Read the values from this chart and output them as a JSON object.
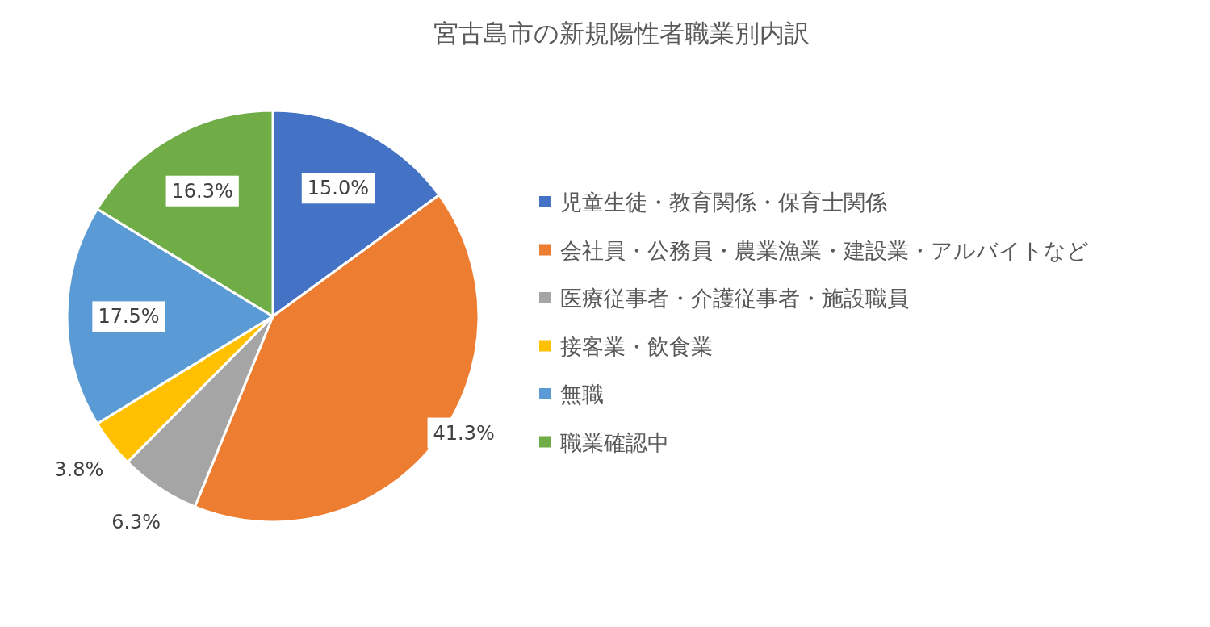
{
  "chart_data": {
    "type": "pie",
    "title": "宮古島市の新規陽性者職業別内訳",
    "categories": [
      "児童生徒・教育関係・保育士関係",
      "会社員・公務員・農業漁業・建設業・アルバイトなど",
      "医療従事者・介護従事者・施設職員",
      "接客業・飲食業",
      "無職",
      "職業確認中"
    ],
    "values": [
      15.0,
      41.3,
      6.3,
      3.8,
      17.5,
      16.3
    ],
    "value_labels": [
      "15.0%",
      "41.3%",
      "6.3%",
      "3.8%",
      "17.5%",
      "16.3%"
    ],
    "colors": [
      "#4472c4",
      "#ed7d31",
      "#a5a5a5",
      "#ffc000",
      "#5b9bd5",
      "#70ad47"
    ],
    "legend": "right"
  }
}
